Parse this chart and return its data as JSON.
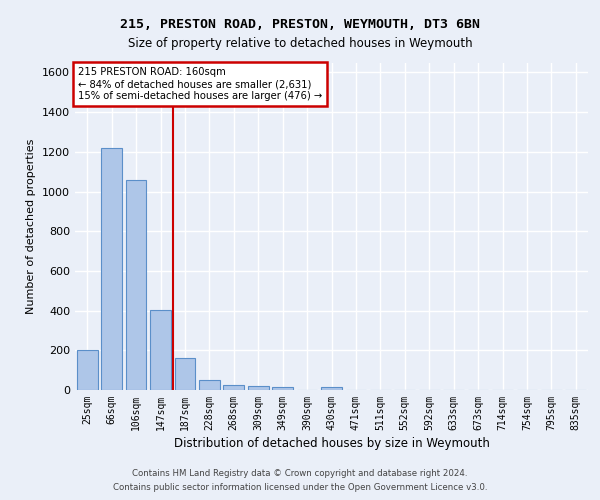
{
  "title_line1": "215, PRESTON ROAD, PRESTON, WEYMOUTH, DT3 6BN",
  "title_line2": "Size of property relative to detached houses in Weymouth",
  "xlabel": "Distribution of detached houses by size in Weymouth",
  "ylabel": "Number of detached properties",
  "categories": [
    "25sqm",
    "66sqm",
    "106sqm",
    "147sqm",
    "187sqm",
    "228sqm",
    "268sqm",
    "309sqm",
    "349sqm",
    "390sqm",
    "430sqm",
    "471sqm",
    "511sqm",
    "552sqm",
    "592sqm",
    "633sqm",
    "673sqm",
    "714sqm",
    "754sqm",
    "795sqm",
    "835sqm"
  ],
  "values": [
    200,
    1220,
    1060,
    405,
    160,
    50,
    25,
    20,
    15,
    0,
    15,
    0,
    0,
    0,
    0,
    0,
    0,
    0,
    0,
    0,
    0
  ],
  "bar_color": "#aec6e8",
  "bar_edge_color": "#5b8fc9",
  "property_line_x": 3.5,
  "annotation_text_line1": "215 PRESTON ROAD: 160sqm",
  "annotation_text_line2": "← 84% of detached houses are smaller (2,631)",
  "annotation_text_line3": "15% of semi-detached houses are larger (476) →",
  "ylim": [
    0,
    1650
  ],
  "yticks": [
    0,
    200,
    400,
    600,
    800,
    1000,
    1200,
    1400,
    1600
  ],
  "footer_line1": "Contains HM Land Registry data © Crown copyright and database right 2024.",
  "footer_line2": "Contains public sector information licensed under the Open Government Licence v3.0.",
  "background_color": "#eaeff8",
  "plot_bg_color": "#eaeff8",
  "grid_color": "#ffffff",
  "annotation_box_color": "#ffffff",
  "annotation_box_edge_color": "#cc0000",
  "red_line_color": "#cc0000"
}
